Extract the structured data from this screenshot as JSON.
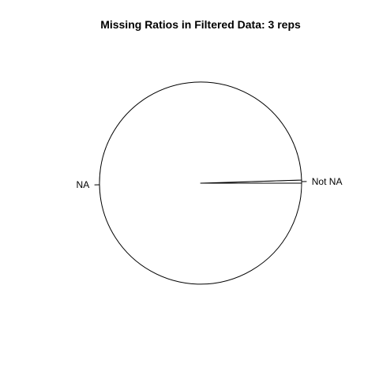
{
  "chart_data": {
    "type": "pie",
    "title": "Missing Ratios in Filtered Data: 3 reps",
    "categories": [
      "Not NA",
      "NA"
    ],
    "values": [
      0.5,
      99.5
    ],
    "colors": [
      "#ffffff",
      "#ffffff"
    ],
    "border_color": "#000000"
  }
}
